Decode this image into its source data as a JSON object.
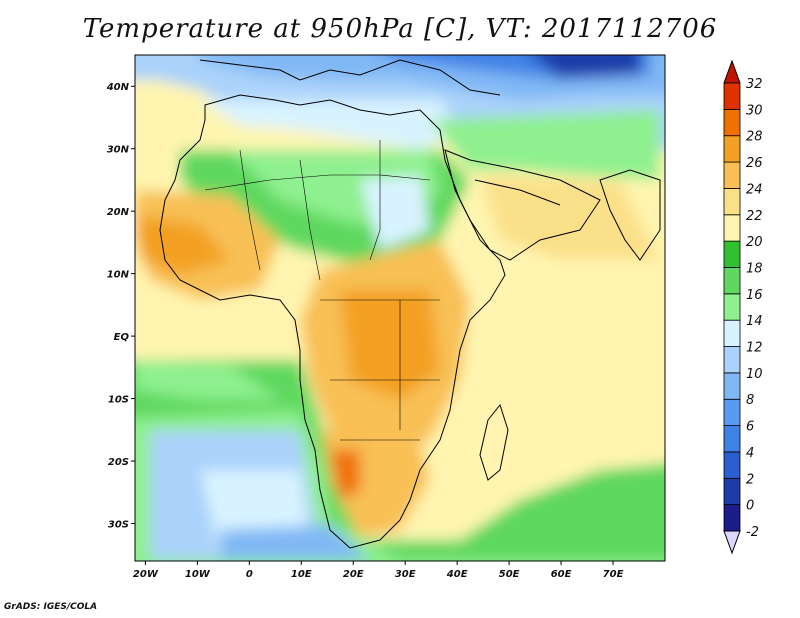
{
  "title": "Temperature at 950hPa [C], VT: 2017112706",
  "credit": "GrADS: IGES/COLA",
  "map": {
    "lon_range": [
      -22,
      80
    ],
    "lat_range": [
      -36,
      45
    ],
    "lon_ticks": [
      {
        "value": -20,
        "label": "20W"
      },
      {
        "value": -10,
        "label": "10W"
      },
      {
        "value": 0,
        "label": "0"
      },
      {
        "value": 10,
        "label": "10E"
      },
      {
        "value": 20,
        "label": "20E"
      },
      {
        "value": 30,
        "label": "30E"
      },
      {
        "value": 40,
        "label": "40E"
      },
      {
        "value": 50,
        "label": "50E"
      },
      {
        "value": 60,
        "label": "60E"
      },
      {
        "value": 70,
        "label": "70E"
      }
    ],
    "lat_ticks": [
      {
        "value": 40,
        "label": "40N"
      },
      {
        "value": 30,
        "label": "30N"
      },
      {
        "value": 20,
        "label": "20N"
      },
      {
        "value": 10,
        "label": "10N"
      },
      {
        "value": 0,
        "label": "EQ"
      },
      {
        "value": -10,
        "label": "10S"
      },
      {
        "value": -20,
        "label": "20S"
      },
      {
        "value": -30,
        "label": "30S"
      }
    ]
  },
  "colorbar": {
    "levels": [
      -2,
      0,
      2,
      4,
      6,
      8,
      10,
      12,
      14,
      16,
      18,
      20,
      22,
      24,
      26,
      28,
      30,
      32
    ],
    "labels": [
      "-2",
      "0",
      "2",
      "4",
      "6",
      "8",
      "10",
      "12",
      "14",
      "16",
      "18",
      "20",
      "22",
      "24",
      "26",
      "28",
      "30",
      "32"
    ],
    "colors": [
      "#dcd6ff",
      "#1c1c8c",
      "#1e3ca8",
      "#2b5fd1",
      "#3f82e6",
      "#5a9af0",
      "#80b8f5",
      "#aad2fa",
      "#d8f3ff",
      "#8ef08e",
      "#5fd85f",
      "#32c032",
      "#fff5b0",
      "#fbe08a",
      "#f8c055",
      "#f3a024",
      "#f07000",
      "#e03200",
      "#c01400"
    ]
  }
}
